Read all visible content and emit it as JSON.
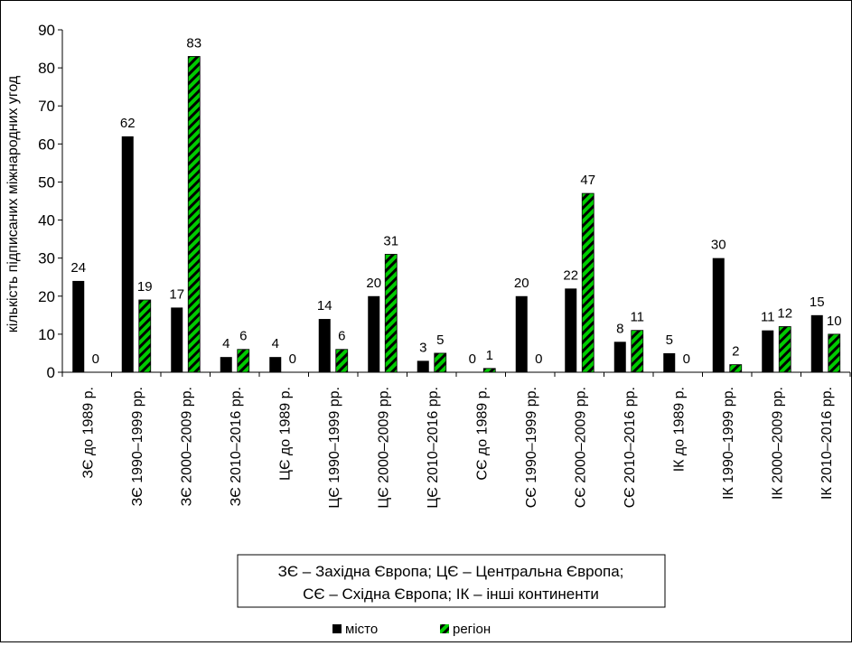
{
  "chart_data": {
    "type": "bar",
    "ylabel": "кількість підписаних міжнародних угод",
    "xlabel": "",
    "ylim": [
      0,
      90
    ],
    "ytick_step": 10,
    "yticks": [
      "0",
      "10",
      "20",
      "30",
      "40",
      "50",
      "60",
      "70",
      "80",
      "90"
    ],
    "grid": false,
    "categories": [
      "ЗЄ до 1989 р.",
      "ЗЄ 1990–1999 рр.",
      "ЗЄ 2000–2009 рр.",
      "ЗЄ 2010–2016 рр.",
      "ЦЄ до 1989 р.",
      "ЦЄ 1990–1999 рр.",
      "ЦЄ 2000–2009 рр.",
      "ЦЄ 2010–2016 рр.",
      "СЄ до 1989 р.",
      "СЄ 1990–1999 рр.",
      "СЄ 2000–2009 рр.",
      "СЄ 2010–2016 рр.",
      "ІК до 1989 р.",
      "ІК 1990–1999 рр.",
      "ІК 2000–2009 рр.",
      "ІК 2010–2016 рр."
    ],
    "series": [
      {
        "name": "місто",
        "color": "#000000",
        "pattern": "solid",
        "values": [
          24,
          62,
          17,
          4,
          4,
          14,
          20,
          3,
          0,
          20,
          22,
          8,
          5,
          30,
          11,
          15
        ]
      },
      {
        "name": "регіон",
        "color": "#00cc00",
        "pattern": "diagonal-stripes-green-black",
        "values": [
          0,
          19,
          83,
          6,
          0,
          6,
          31,
          5,
          1,
          0,
          47,
          11,
          0,
          2,
          12,
          10
        ]
      }
    ],
    "annotation": {
      "line1": "ЗЄ – Західна Європа; ЦЄ – Центральна Європа;",
      "line2": "СЄ – Східна Європа; ІК – інші континенти"
    },
    "legend_position": "bottom"
  }
}
